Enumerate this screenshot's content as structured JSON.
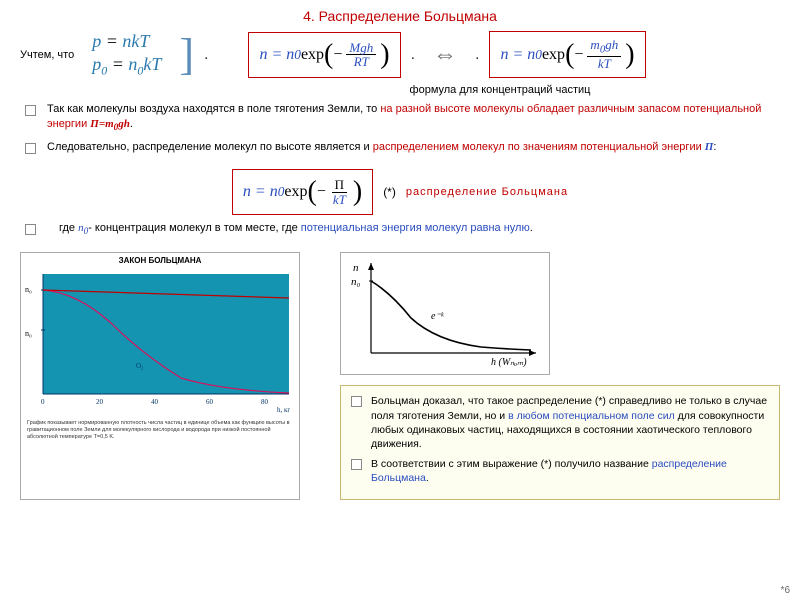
{
  "title": "4. Распределение Больцмана",
  "note": "Учтем, что",
  "eq1_line1_html": "<span class='v'>p</span> = <span class='v'>nkT</span>",
  "eq1_line2_html": "<span class='v'>p</span><span class='sub n'>0</span> = <span class='v'>n</span><span class='sub n'>0</span><span class='v'>kT</span>",
  "formula1": {
    "lhs": "n = n",
    "sub": "0",
    "exp": " exp",
    "num": "Mgh",
    "den": "RT",
    "neg": "−"
  },
  "formula2": {
    "lhs": "n = n",
    "sub": "0",
    "exp": " exp",
    "num_html": "m<sub>0</sub>gh",
    "den": "kT",
    "neg": "−"
  },
  "caption1": "формула для концентраций частиц",
  "bullet1_a": "Так как молекулы воздуха находятся в поле тяготения Земли, то ",
  "bullet1_b": "на разной высоте молекулы обладает различным запасом потенциальной энергии ",
  "bullet1_c": "П=m",
  "bullet1_c2": "0",
  "bullet1_c3": "gh",
  "bullet2_a": "Следовательно, распределение молекул по высоте является и ",
  "bullet2_b": "распределением молекул по значениям потенциальной энергии ",
  "bullet2_c": "П",
  "formula3": {
    "lhs": "n = n",
    "sub": "0",
    "exp": " exp",
    "num": "П",
    "den": "kT",
    "neg": "−"
  },
  "star": "(*)",
  "dist_label": "распределение Больцмана",
  "bullet3_a": "где ",
  "bullet3_b": "n",
  "bullet3_b2": "0",
  "bullet3_c": "- концентрация молекул в том месте, где ",
  "bullet3_d": "потенциальная энергия молекул равна нулю",
  "graph_left": {
    "title": "ЗАКОН БОЛЬЦМАНА",
    "bg": "#1494b0",
    "line1_color": "#d5125f",
    "line2_color": "#c00000",
    "axis_color": "#003366",
    "ylabel1": "n₀",
    "ylabel2": "n₀",
    "xticks": [
      "0",
      "20",
      "40",
      "60",
      "80"
    ],
    "xunit": "h, кг",
    "note": "График показывает нормированную плотность числа частиц в единице объема как функцию высоты в гравитационном поле Земли для молекулярного кислорода и водорода при низкой постоянной абсолютной температуре T=0,5 K."
  },
  "graph_right": {
    "ylab1": "n",
    "ylab2": "n₀",
    "curve_label": "e⁻ᵏ",
    "xlab": "h (Wₙₒₘ)"
  },
  "box_b1_a": "Больцман доказал, что такое распределение (*) справедливо не только в случае поля тяготения Земли, но и ",
  "box_b1_b": "в любом потенциальном поле сил",
  "box_b1_c": " для совокупности любых одинаковых частиц, находящихся в состоянии хаотического теплового движения.",
  "box_b2_a": "В соответствии с этим выражение (*) получило название ",
  "box_b2_b": "распределение Больцмана",
  "pagenum": "*6",
  "colors": {
    "red": "#c00000",
    "blue": "#2a4dbf",
    "teal": "#1494b0"
  }
}
